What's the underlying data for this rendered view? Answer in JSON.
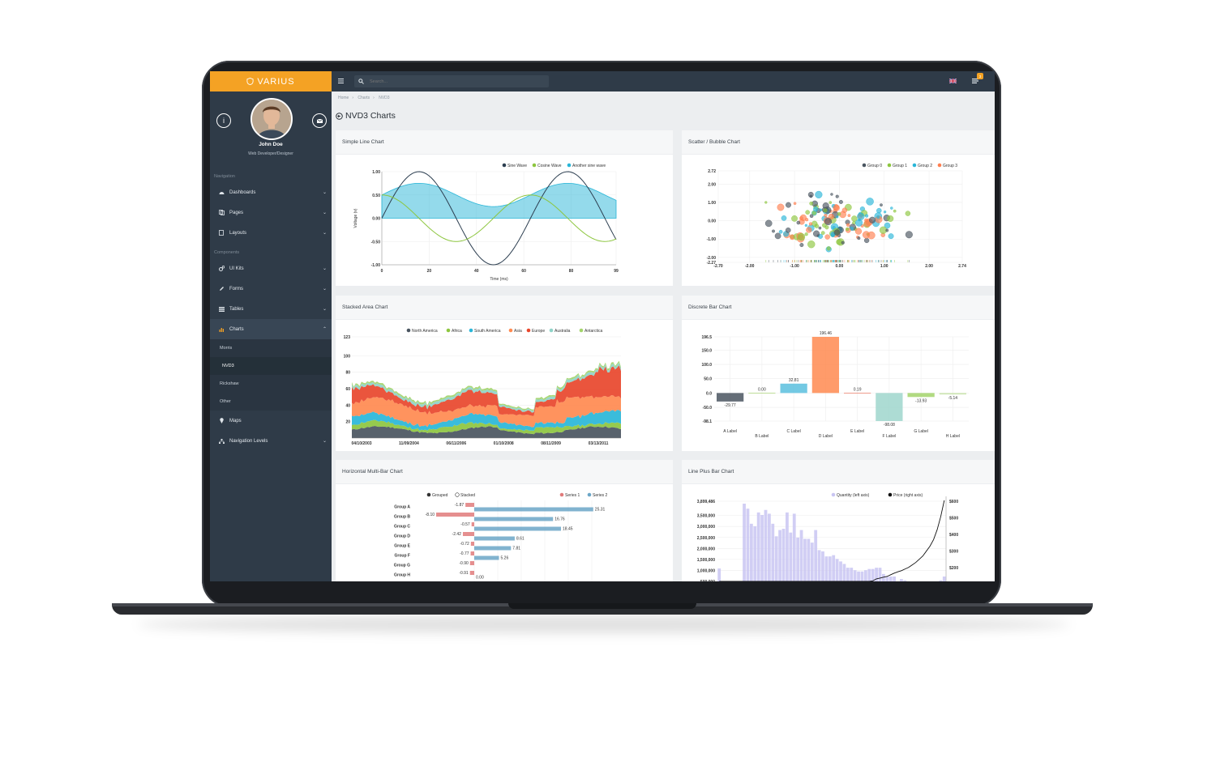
{
  "brand": {
    "name": "VARIUS",
    "color": "#f4a224"
  },
  "user": {
    "name": "John Doe",
    "role": "Web Developer/Designer",
    "info_icon": "i",
    "mail_icon": "envelope-icon"
  },
  "sidebar": {
    "sections": {
      "navigation": "Navigation",
      "components": "Components"
    },
    "items": [
      {
        "label": "Dashboards",
        "icon": "dashboard-icon"
      },
      {
        "label": "Pages",
        "icon": "copy-icon"
      },
      {
        "label": "Layouts",
        "icon": "file-icon"
      },
      {
        "label": "UI Kits",
        "icon": "cogs-icon"
      },
      {
        "label": "Forms",
        "icon": "pencil-icon"
      },
      {
        "label": "Tables",
        "icon": "table-icon"
      },
      {
        "label": "Charts",
        "icon": "bar-chart-icon"
      },
      {
        "label": "Maps",
        "icon": "map-marker-icon"
      },
      {
        "label": "Navigation Levels",
        "icon": "sitemap-icon"
      }
    ],
    "chart_sub": [
      "Morris",
      "NVD3",
      "Rickshaw",
      "Other"
    ]
  },
  "topbar": {
    "search_placeholder": "Search...",
    "notification_count": "3"
  },
  "breadcrumbs": [
    "Home",
    "Charts",
    "NVD3"
  ],
  "page_title": "NVD3 Charts",
  "cards": {
    "simple_line": "Simple Line Chart",
    "scatter": "Scatter / Bubble Chart",
    "stacked_area": "Stacked Area Chart",
    "discrete_bar": "Discrete Bar Chart",
    "horizontal_multibar": "Horizontal Multi-Bar Chart",
    "line_plus_bar": "Line Plus Bar Chart"
  },
  "chart_data": [
    {
      "type": "line",
      "title": "Simple Line Chart",
      "xlabel": "Time (ms)",
      "ylabel": "Voltage (v)",
      "xlim": [
        0,
        99
      ],
      "ylim": [
        -1.0,
        1.0
      ],
      "x_ticks": [
        "0",
        "20",
        "40",
        "60",
        "80",
        "99"
      ],
      "y_ticks": [
        "1.00",
        "0.50",
        "0.00",
        "-0.50",
        "-1.00"
      ],
      "legend_position": "top-right",
      "series": [
        {
          "name": "Sine Wave",
          "color": "#2c3e50",
          "formula": "sin(x/10)"
        },
        {
          "name": "Cosine Wave",
          "color": "#8dc63f",
          "formula": "0.5*cos(x/10)"
        },
        {
          "name": "Another sine wave",
          "color": "#29b6d8",
          "area": true,
          "formula": "0.25*sin(x/10)+0.5"
        }
      ]
    },
    {
      "type": "scatter",
      "title": "Scatter / Bubble Chart",
      "xlim": [
        -2.7,
        2.74
      ],
      "ylim": [
        -2.27,
        2.72
      ],
      "x_ticks": [
        "-2.70",
        "-2.00",
        "-1.00",
        "0.00",
        "1.00",
        "2.00",
        "2.74"
      ],
      "y_ticks": [
        "2.72",
        "2.00",
        "1.00",
        "0.00",
        "-1.00",
        "-2.00",
        "-2.27"
      ],
      "legend_position": "top-right",
      "series": [
        {
          "name": "Group 0",
          "color": "#4a5560"
        },
        {
          "name": "Group 1",
          "color": "#8dc63f"
        },
        {
          "name": "Group 2",
          "color": "#29b6d8"
        },
        {
          "name": "Group 3",
          "color": "#ff7f50"
        }
      ]
    },
    {
      "type": "area",
      "title": "Stacked Area Chart",
      "ylim": [
        0,
        123
      ],
      "y_ticks": [
        "123",
        "100",
        "80",
        "60",
        "40",
        "20"
      ],
      "x_ticks": [
        "04/10/2003",
        "11/09/2004",
        "06/11/2006",
        "01/10/2008",
        "08/11/2009",
        "03/13/2011"
      ],
      "legend_position": "top",
      "series": [
        {
          "name": "North America",
          "color": "#4a5560"
        },
        {
          "name": "Africa",
          "color": "#8dc63f"
        },
        {
          "name": "South America",
          "color": "#29b6d8"
        },
        {
          "name": "Asia",
          "color": "#ff8a50"
        },
        {
          "name": "Europe",
          "color": "#e8472c"
        },
        {
          "name": "Australia",
          "color": "#8fd3c8"
        },
        {
          "name": "Antarctica",
          "color": "#a3d46b"
        }
      ]
    },
    {
      "type": "bar",
      "title": "Discrete Bar Chart",
      "ylim": [
        -98.1,
        196.5
      ],
      "y_ticks": [
        "196.5",
        "150.0",
        "100.0",
        "50.0",
        "0.0",
        "-50.0",
        "-98.1"
      ],
      "categories": [
        "A Label",
        "B Label",
        "C Label",
        "D Label",
        "E Label",
        "F Label",
        "G Label",
        "H Label"
      ],
      "values": [
        -29.77,
        0.0,
        32.81,
        196.46,
        0.19,
        -98.08,
        -13.93,
        -5.14
      ],
      "value_labels": [
        "-29.77",
        "0.00",
        "32.81",
        "196.46",
        "0.19",
        "-98.08",
        "-13.93",
        "-5.14"
      ],
      "colors": [
        "#4a5560",
        "#8dc63f",
        "#5bc0de",
        "#ff8a50",
        "#e8472c",
        "#9fd6cc",
        "#a3d46b",
        "#c7e3a8"
      ]
    },
    {
      "type": "bar",
      "orientation": "horizontal",
      "title": "Horizontal Multi-Bar Chart",
      "controls": [
        "Grouped",
        "Stacked"
      ],
      "legend_position": "top-right",
      "categories": [
        "Group A",
        "Group B",
        "Group C",
        "Group D",
        "Group E",
        "Group F",
        "Group G",
        "Group H"
      ],
      "series": [
        {
          "name": "Series 1",
          "color": "#e07b7b",
          "values": [
            -1.87,
            -8.1,
            -0.57,
            -2.42,
            -0.72,
            -0.77,
            -0.9,
            -0.91
          ]
        },
        {
          "name": "Series 2",
          "color": "#6ba6c7",
          "values": [
            25.31,
            16.76,
            18.45,
            8.61,
            7.81,
            5.26,
            0,
            0
          ]
        }
      ],
      "value_labels": {
        "series1": [
          "-1.87",
          "-8.10",
          "-0.57",
          "-2.42",
          "-0.72",
          "-0.77",
          "-0.90",
          "-0.91"
        ],
        "series2": [
          "25.31",
          "16.76",
          "18.45",
          "8.61",
          "7.81",
          "5.26",
          "",
          "0.00"
        ]
      }
    },
    {
      "type": "bar",
      "title": "Line Plus Bar Chart",
      "y_left_ticks": [
        "3,899,486",
        "3,500,000",
        "3,000,000",
        "2,500,000",
        "2,000,000",
        "1,500,000",
        "1,000,000",
        "500,000"
      ],
      "y_right_ticks": [
        "$600",
        "$500",
        "$400",
        "$300",
        "$200"
      ],
      "legend_position": "top-right",
      "series": [
        {
          "name": "Quantity (left axis)",
          "color": "#c9c6f2",
          "values": [
            1.32,
            0,
            0,
            0,
            0,
            0,
            0,
            3.9,
            3.7,
            3.1,
            3.0,
            3.55,
            3.45,
            3.65,
            3.5,
            3.1,
            2.6,
            2.85,
            2.9,
            3.55,
            2.75,
            3.5,
            2.55,
            2.85,
            2.5,
            2.5,
            2.35,
            2.85,
            2.05,
            2.0,
            1.8,
            1.8,
            1.85,
            1.7,
            1.6,
            1.5,
            1.35,
            1.35,
            1.25,
            1.2,
            1.2,
            1.25,
            1.3,
            1.3,
            1.35,
            1.35,
            1.1,
            1.0,
            1.0,
            1.0,
            0.8,
            0.9,
            0.85,
            0.75,
            0.6,
            0.55,
            0.45,
            0.45,
            0.75,
            0.75,
            0.7,
            0.75,
            0.85,
            1.0
          ]
        },
        {
          "name": "Price (right axis)",
          "color": "#111111",
          "values": [
            5.2,
            5.2,
            5.2,
            5.2,
            5.2,
            5.2,
            5.2,
            5.2,
            5.2,
            5.2,
            5.2,
            5.2,
            5.2,
            5.2,
            5.2,
            5.0,
            4.6,
            4.2,
            3.8,
            3.2,
            2.8,
            2.4,
            1.8,
            1.4,
            1.2,
            1.0,
            1.2,
            1.5,
            1.3,
            1.1,
            1.6,
            2.2,
            2.0,
            1.7,
            1.5,
            1.6,
            2.0,
            2.6,
            3.0,
            3.5,
            4.0,
            4.4,
            4.8,
            5.4,
            6.0,
            6.5,
            7.0,
            7.5,
            8.5,
            9.5,
            10.3,
            11.0,
            12.0,
            13.0,
            14.5,
            16.0,
            18.0,
            20.0,
            23.0,
            26.0,
            30.0,
            36.0,
            44.0,
            54.0
          ]
        }
      ]
    }
  ]
}
